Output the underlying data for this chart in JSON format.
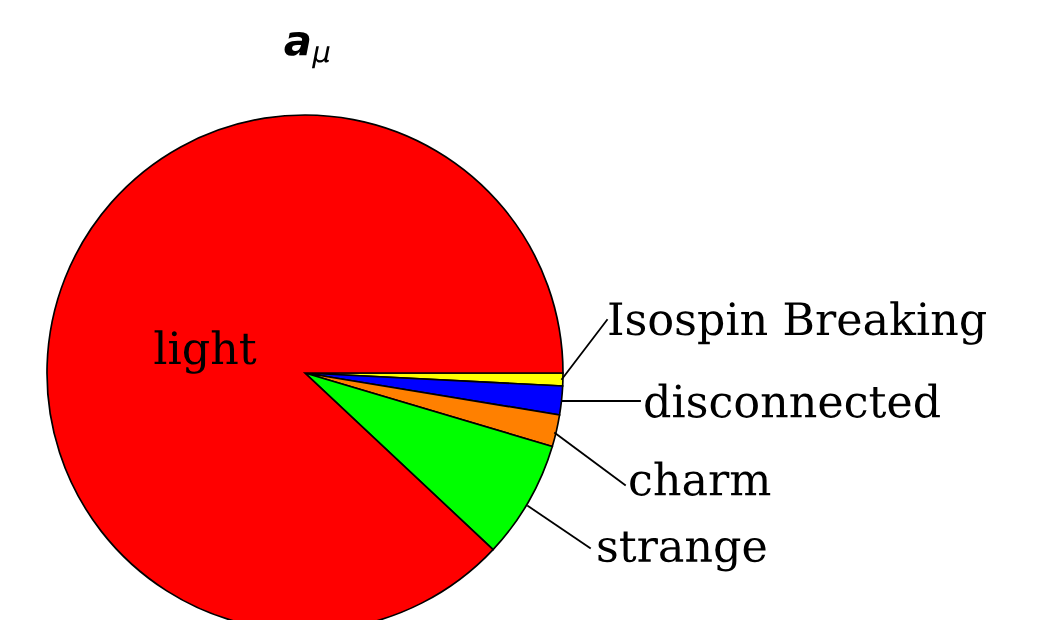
{
  "chart_data": {
    "type": "pie",
    "title": "a$_{μ}$",
    "categories": [
      "Isospin Breaking",
      "disconnected",
      "charm",
      "strange",
      "light"
    ],
    "values": [
      0.8,
      1.8,
      2.0,
      7.4,
      88.0
    ],
    "colors": [
      "#ffff00",
      "#0000ff",
      "#ff8000",
      "#00ff00",
      "#ff0000"
    ]
  }
}
